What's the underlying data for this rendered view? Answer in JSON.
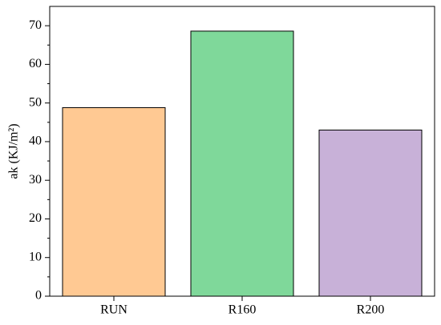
{
  "chart_data": {
    "type": "bar",
    "y_label": "ak (KJ/m²)",
    "categories": [
      "RUN",
      "R160",
      "R200"
    ],
    "values": [
      48.8,
      68.6,
      43.0
    ],
    "colors": [
      "#ffc993",
      "#7fd89a",
      "#c8b1d8"
    ],
    "ylim": [
      0,
      75
    ],
    "yticks": [
      0,
      10,
      20,
      30,
      40,
      50,
      60,
      70
    ],
    "grid": false
  }
}
